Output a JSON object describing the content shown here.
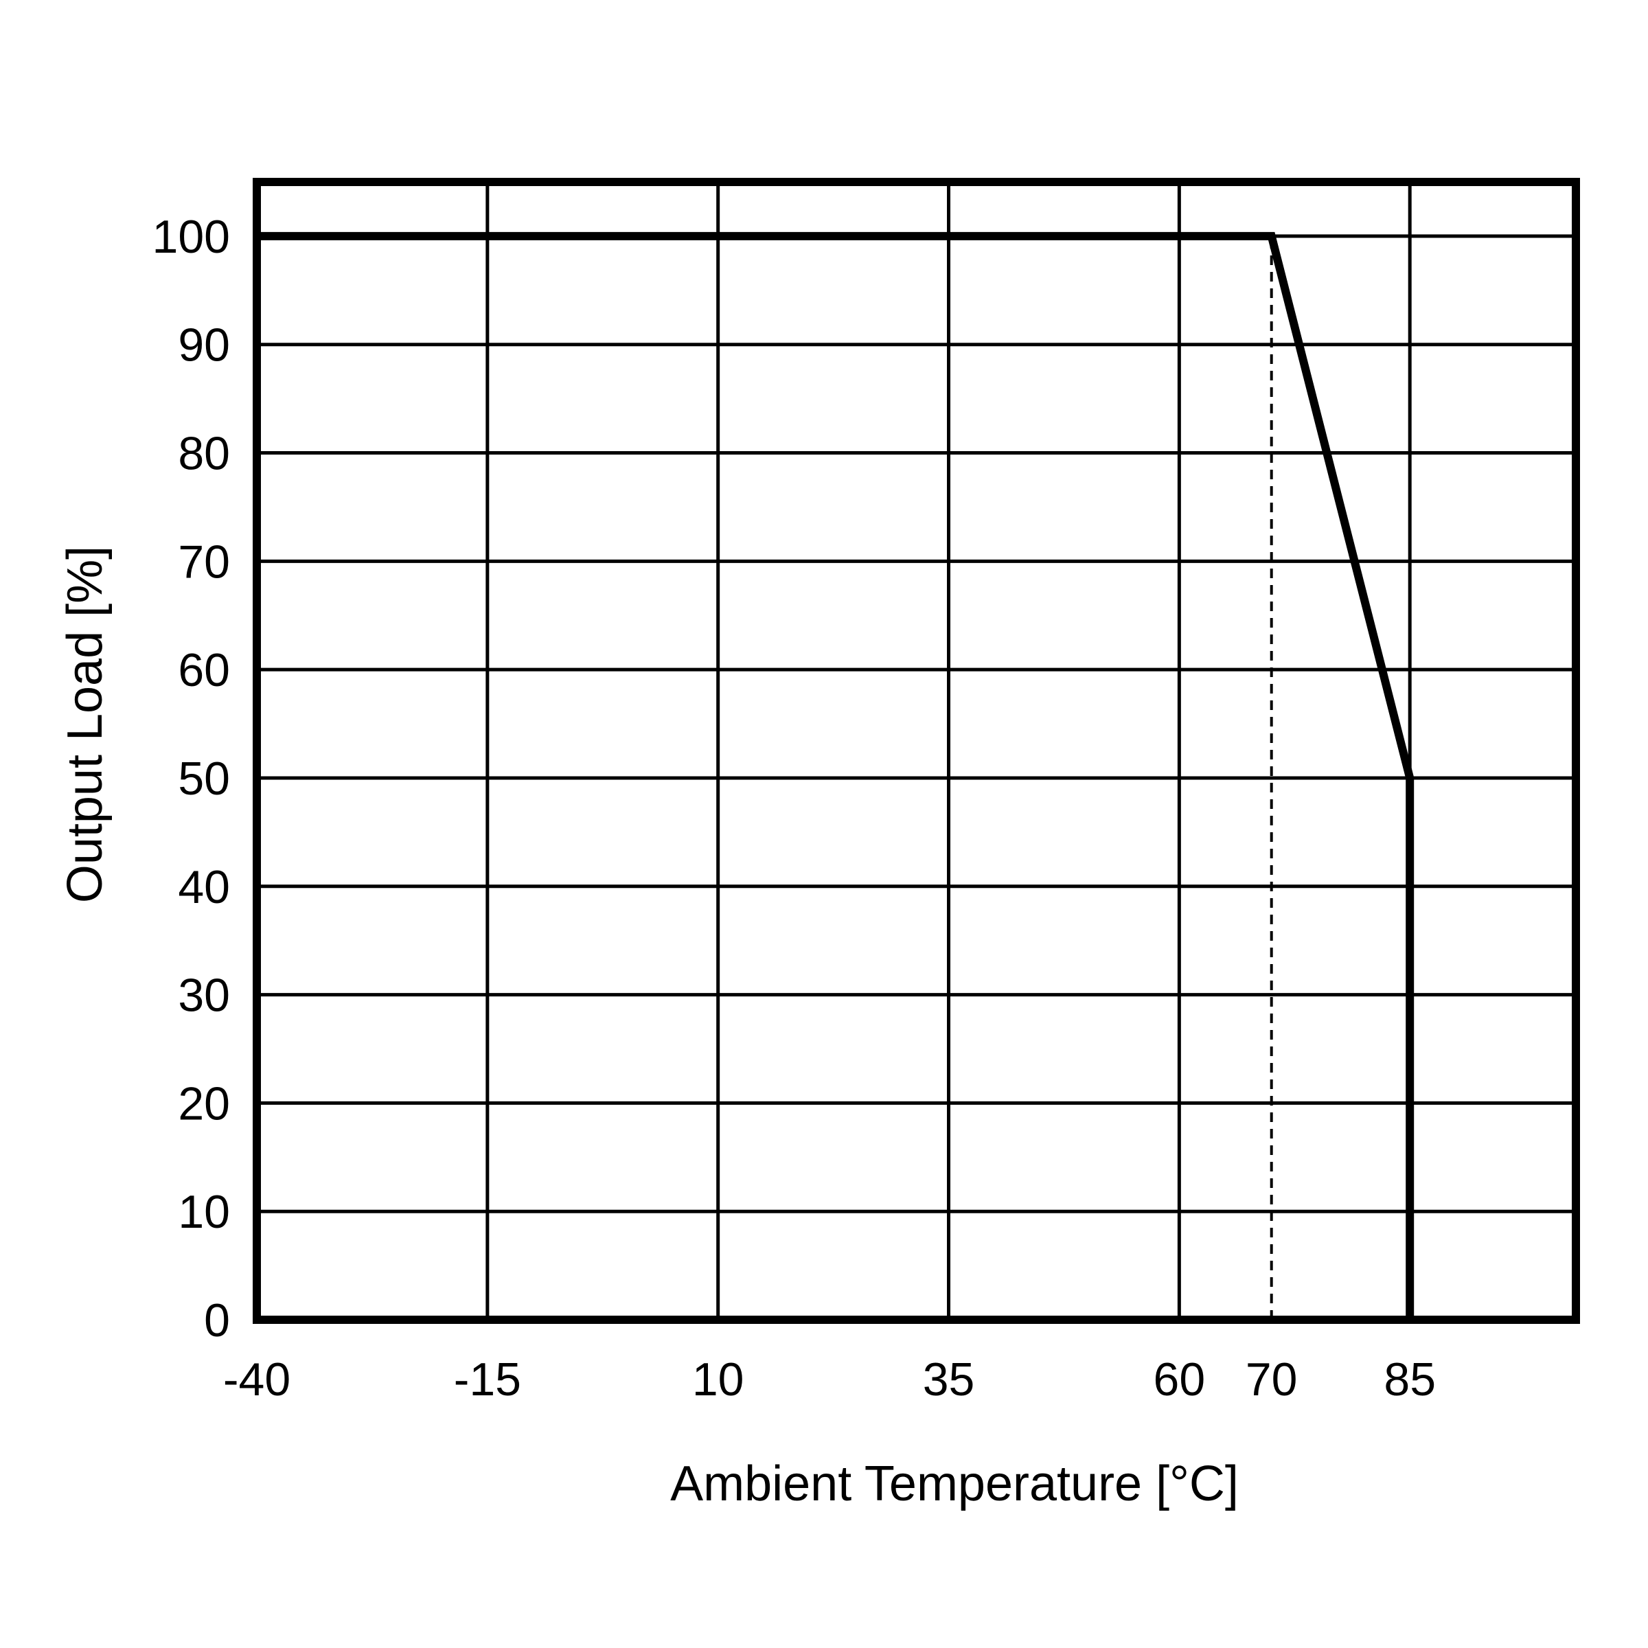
{
  "chart_data": {
    "type": "line",
    "title": "",
    "xlabel": "Ambient Temperature [°C]",
    "ylabel": "Output Load [%]",
    "x_ticks": [
      -40,
      -15,
      10,
      35,
      60,
      70,
      85
    ],
    "x_tick_labels": [
      "-40",
      "-15",
      "10",
      "35",
      "60",
      "70",
      "85"
    ],
    "x_grid": [
      -40,
      -15,
      10,
      35,
      60,
      85
    ],
    "y_ticks": [
      0,
      10,
      20,
      30,
      40,
      50,
      60,
      70,
      80,
      90,
      100
    ],
    "y_tick_labels": [
      "0",
      "10",
      "20",
      "30",
      "40",
      "50",
      "60",
      "70",
      "80",
      "90",
      "100"
    ],
    "xlim": [
      -40,
      103
    ],
    "ylim": [
      0,
      105
    ],
    "grid": true,
    "series": [
      {
        "x": [
          -40,
          70,
          85,
          85
        ],
        "y": [
          100,
          100,
          50,
          0
        ]
      }
    ],
    "reference_lines": [
      {
        "axis": "x",
        "value": 70,
        "from_y": 0,
        "to_y": 100,
        "style": "dashed"
      }
    ],
    "colors": {
      "line": "#000000",
      "grid": "#000000",
      "background": "#ffffff"
    }
  }
}
